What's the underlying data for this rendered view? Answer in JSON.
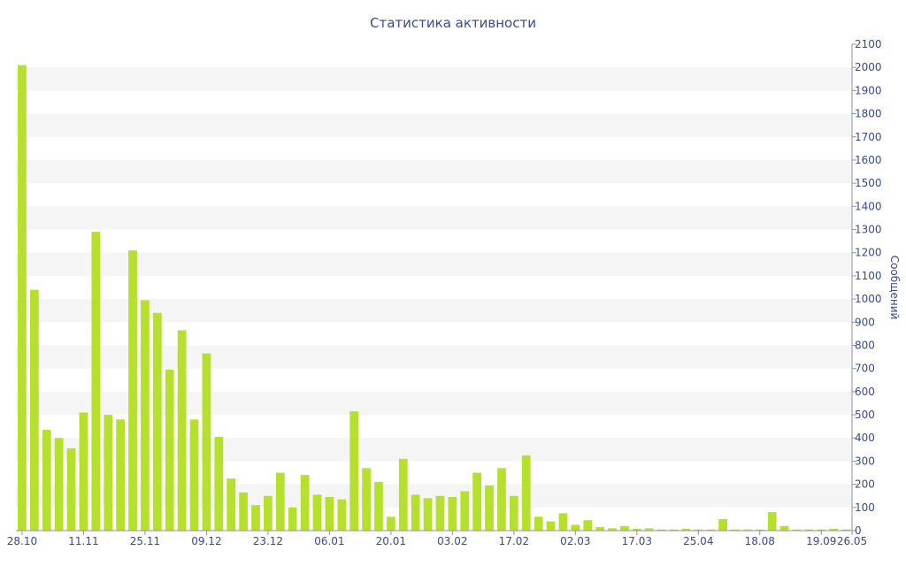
{
  "chart_data": {
    "type": "bar",
    "title": "Статистика активности",
    "xlabel": "",
    "ylabel": "Сообщений",
    "ylim": [
      0,
      2100
    ],
    "ytick_step": 100,
    "grid": "alternating horizontal bands",
    "y_axis_position": "right",
    "bar_color": "#b5e02b",
    "band_color": "#f5f5f5",
    "text_color": "#3a4a8c",
    "x_tick_labels": [
      {
        "index": 0,
        "label": "28.10"
      },
      {
        "index": 5,
        "label": "11.11"
      },
      {
        "index": 10,
        "label": "25.11"
      },
      {
        "index": 15,
        "label": "09.12"
      },
      {
        "index": 20,
        "label": "23.12"
      },
      {
        "index": 25,
        "label": "06.01"
      },
      {
        "index": 30,
        "label": "20.01"
      },
      {
        "index": 35,
        "label": "03.02"
      },
      {
        "index": 40,
        "label": "17.02"
      },
      {
        "index": 45,
        "label": "02.03"
      },
      {
        "index": 50,
        "label": "17.03"
      },
      {
        "index": 55,
        "label": "25.04"
      },
      {
        "index": 60,
        "label": "18.08"
      },
      {
        "index": 65,
        "label": "19.09"
      },
      {
        "index": 70,
        "label": "26.05"
      }
    ],
    "values": [
      2010,
      1040,
      435,
      400,
      355,
      510,
      1290,
      500,
      480,
      1210,
      995,
      940,
      695,
      865,
      480,
      765,
      405,
      225,
      165,
      110,
      150,
      250,
      100,
      240,
      155,
      145,
      135,
      515,
      270,
      210,
      60,
      310,
      155,
      140,
      150,
      145,
      170,
      250,
      195,
      270,
      150,
      325,
      60,
      40,
      75,
      25,
      45,
      15,
      10,
      20,
      8,
      10,
      5,
      5,
      8,
      5,
      5,
      50,
      5,
      5,
      5,
      80,
      20,
      5,
      5,
      5,
      8,
      5
    ]
  }
}
